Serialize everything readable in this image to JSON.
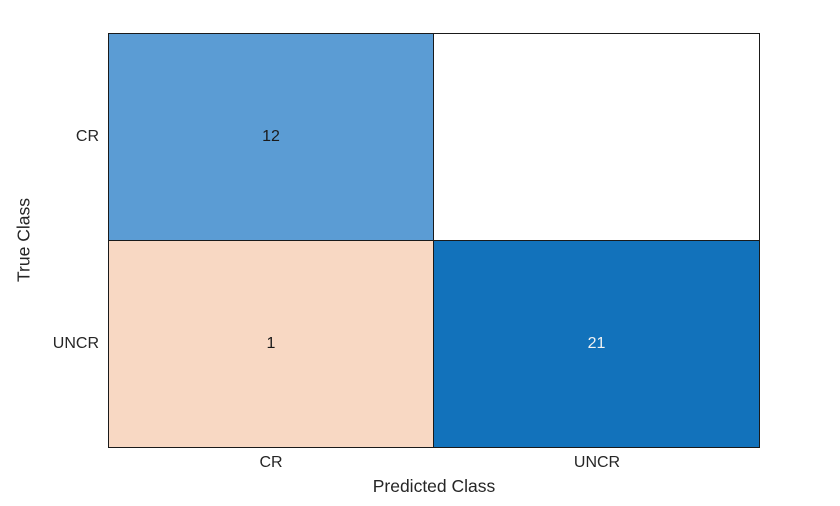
{
  "chart_data": {
    "type": "heatmap",
    "subtype": "confusion_matrix",
    "title": "",
    "xlabel": "Predicted Class",
    "ylabel": "True Class",
    "x_categories": [
      "CR",
      "UNCR"
    ],
    "y_categories": [
      "CR",
      "UNCR"
    ],
    "matrix_true_rows_by_predicted_cols": [
      [
        12,
        0
      ],
      [
        1,
        21
      ]
    ],
    "legend_position": "none",
    "grid": "cell-borders-only",
    "colors": {
      "background": "#ffffff",
      "border": "#1a1a1a",
      "diagonal_high": "#1272bb",
      "diagonal_mid": "#5b9cd4",
      "off_diagonal_low": "#f8d8c3",
      "zero_cell": "#ffffff",
      "text_dark": "#1a1a1a",
      "text_light": "#f2f2f2",
      "axis_text": "#262626"
    },
    "cells": [
      {
        "true_class": "CR",
        "predicted_class": "CR",
        "value": 12,
        "label": "12",
        "bg": "#5b9cd4",
        "fg": "#1a1a1a"
      },
      {
        "true_class": "CR",
        "predicted_class": "UNCR",
        "value": 0,
        "label": "",
        "bg": "#ffffff",
        "fg": "#1a1a1a"
      },
      {
        "true_class": "UNCR",
        "predicted_class": "CR",
        "value": 1,
        "label": "1",
        "bg": "#f8d8c3",
        "fg": "#1a1a1a"
      },
      {
        "true_class": "UNCR",
        "predicted_class": "UNCR",
        "value": 21,
        "label": "21",
        "bg": "#1272bb",
        "fg": "#f2f2f2"
      }
    ],
    "y_ticks": {
      "row0": "CR",
      "row1": "UNCR"
    },
    "x_ticks": {
      "col0": "CR",
      "col1": "UNCR"
    }
  }
}
